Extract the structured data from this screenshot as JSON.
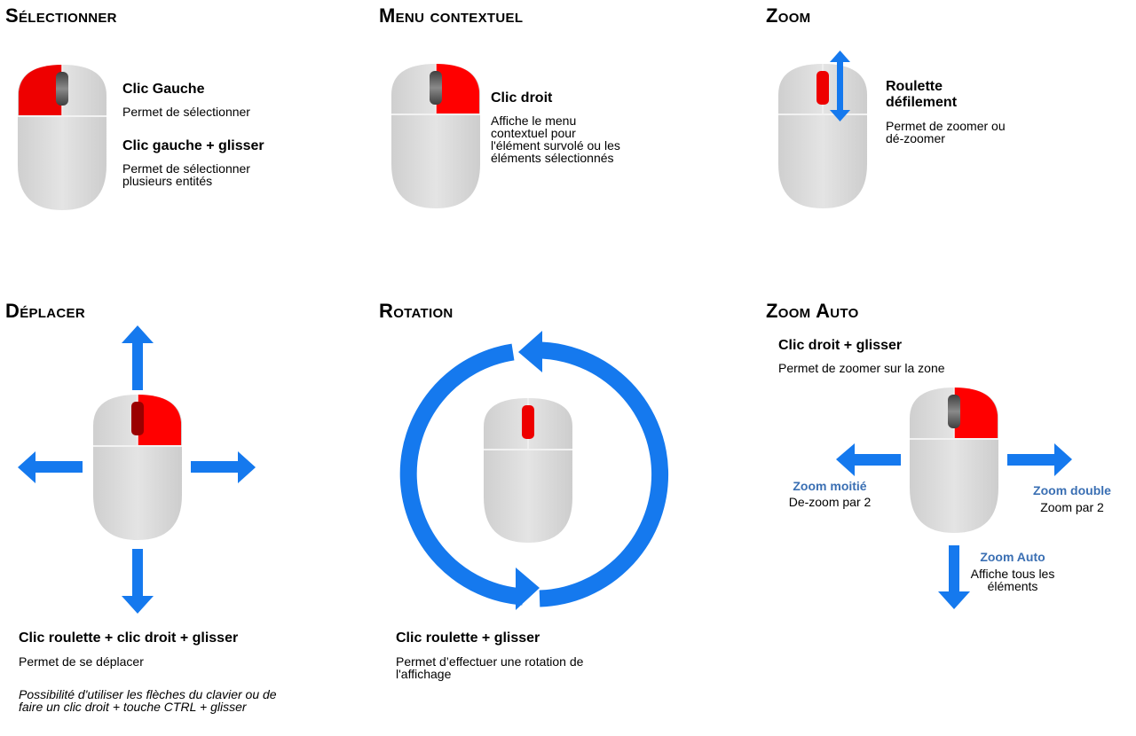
{
  "colors": {
    "arrow": "#1579ee",
    "button_active": "#ff0000",
    "wheel_active": "#e60000",
    "mouse_body": "#d9d9d9",
    "label_blue": "#3a6fb3"
  },
  "select": {
    "title": "Sélectionner",
    "action1": "Clic Gauche",
    "desc1": "Permet de sélectionner",
    "action2": "Clic gauche + glisser",
    "desc2": "Permet de sélectionner\nplusieurs entités"
  },
  "context": {
    "title": "Menu contextuel",
    "action": "Clic droit",
    "desc": "Affiche le menu\ncontextuel pour\nl'élément survolé ou les\néléments sélectionnés"
  },
  "zoom": {
    "title": "Zoom",
    "action": "Roulette\ndéfilement",
    "desc": "Permet de zoomer ou\ndé-zoomer"
  },
  "move": {
    "title": "Déplacer",
    "action": "Clic roulette + clic droit + glisser",
    "desc": "Permet de se déplacer",
    "note": "Possibilité d'utiliser les flèches du clavier ou de\nfaire un clic droit + touche CTRL + glisser"
  },
  "rotation": {
    "title": "Rotation",
    "action": "Clic roulette + glisser",
    "desc": "Permet d’effectuer une rotation de\nl'affichage"
  },
  "zoom_auto": {
    "title": "Zoom Auto",
    "action": "Clic droit + glisser",
    "desc": "Permet de zoomer sur la zone",
    "left_label": "Zoom moitié",
    "left_desc": "De-zoom par 2",
    "right_label": "Zoom double",
    "right_desc": "Zoom par 2",
    "down_label": "Zoom Auto",
    "down_desc": "Affiche tous les\néléments"
  }
}
